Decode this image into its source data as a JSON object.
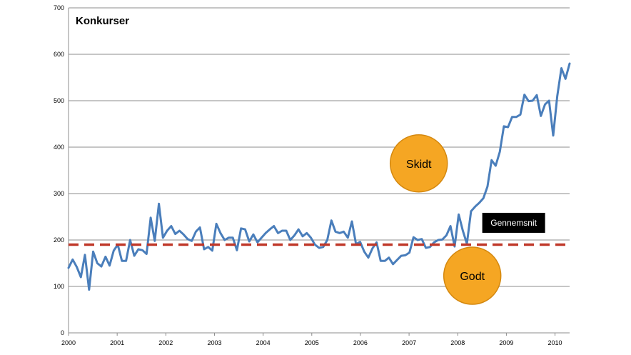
{
  "chart_data": {
    "type": "line",
    "title": "Konkurser",
    "xlabel": "",
    "ylabel": "",
    "xlim": [
      2000,
      2010.3
    ],
    "ylim": [
      0,
      700
    ],
    "y_ticks": [
      0,
      100,
      200,
      300,
      400,
      500,
      600,
      700
    ],
    "x_tick_labels": [
      "2000",
      "2001",
      "2002",
      "2003",
      "2004",
      "2005",
      "2006",
      "2007",
      "2008",
      "2009",
      "2010"
    ],
    "grid": "horizontal",
    "colors": {
      "series": "#4a7ebb",
      "average": "#c0392b",
      "bubble": "#f5a623",
      "bubble_border": "#d4880f",
      "label_box": "#000000"
    },
    "series": [
      {
        "name": "Konkurser",
        "values": [
          140,
          158,
          142,
          120,
          168,
          93,
          175,
          150,
          143,
          164,
          145,
          177,
          190,
          155,
          155,
          200,
          166,
          180,
          178,
          170,
          248,
          198,
          278,
          205,
          220,
          230,
          213,
          220,
          212,
          202,
          198,
          218,
          227,
          180,
          185,
          177,
          235,
          215,
          200,
          205,
          205,
          178,
          225,
          223,
          197,
          212,
          195,
          205,
          215,
          223,
          230,
          215,
          220,
          220,
          200,
          210,
          223,
          208,
          215,
          205,
          190,
          183,
          185,
          200,
          242,
          218,
          215,
          218,
          205,
          240,
          191,
          196,
          175,
          162,
          182,
          195,
          155,
          155,
          162,
          148,
          157,
          166,
          167,
          173,
          206,
          200,
          202,
          183,
          185,
          195,
          200,
          201,
          210,
          230,
          186,
          255,
          220,
          192,
          262,
          272,
          280,
          290,
          315,
          372,
          360,
          390,
          445,
          443,
          465,
          465,
          470,
          513,
          499,
          500,
          512,
          467,
          492,
          500,
          425,
          510,
          570,
          547,
          580
        ]
      }
    ],
    "reference_line": {
      "name": "Gennemsnit",
      "value": 190,
      "style": "dashed"
    },
    "annotations": [
      {
        "text": "Skidt",
        "x": 2007.2,
        "y": 365
      },
      {
        "text": "Godt",
        "x": 2008.3,
        "y": 123
      },
      {
        "text": "Gennemsnit",
        "x": 2009.15,
        "y": 237
      }
    ]
  }
}
